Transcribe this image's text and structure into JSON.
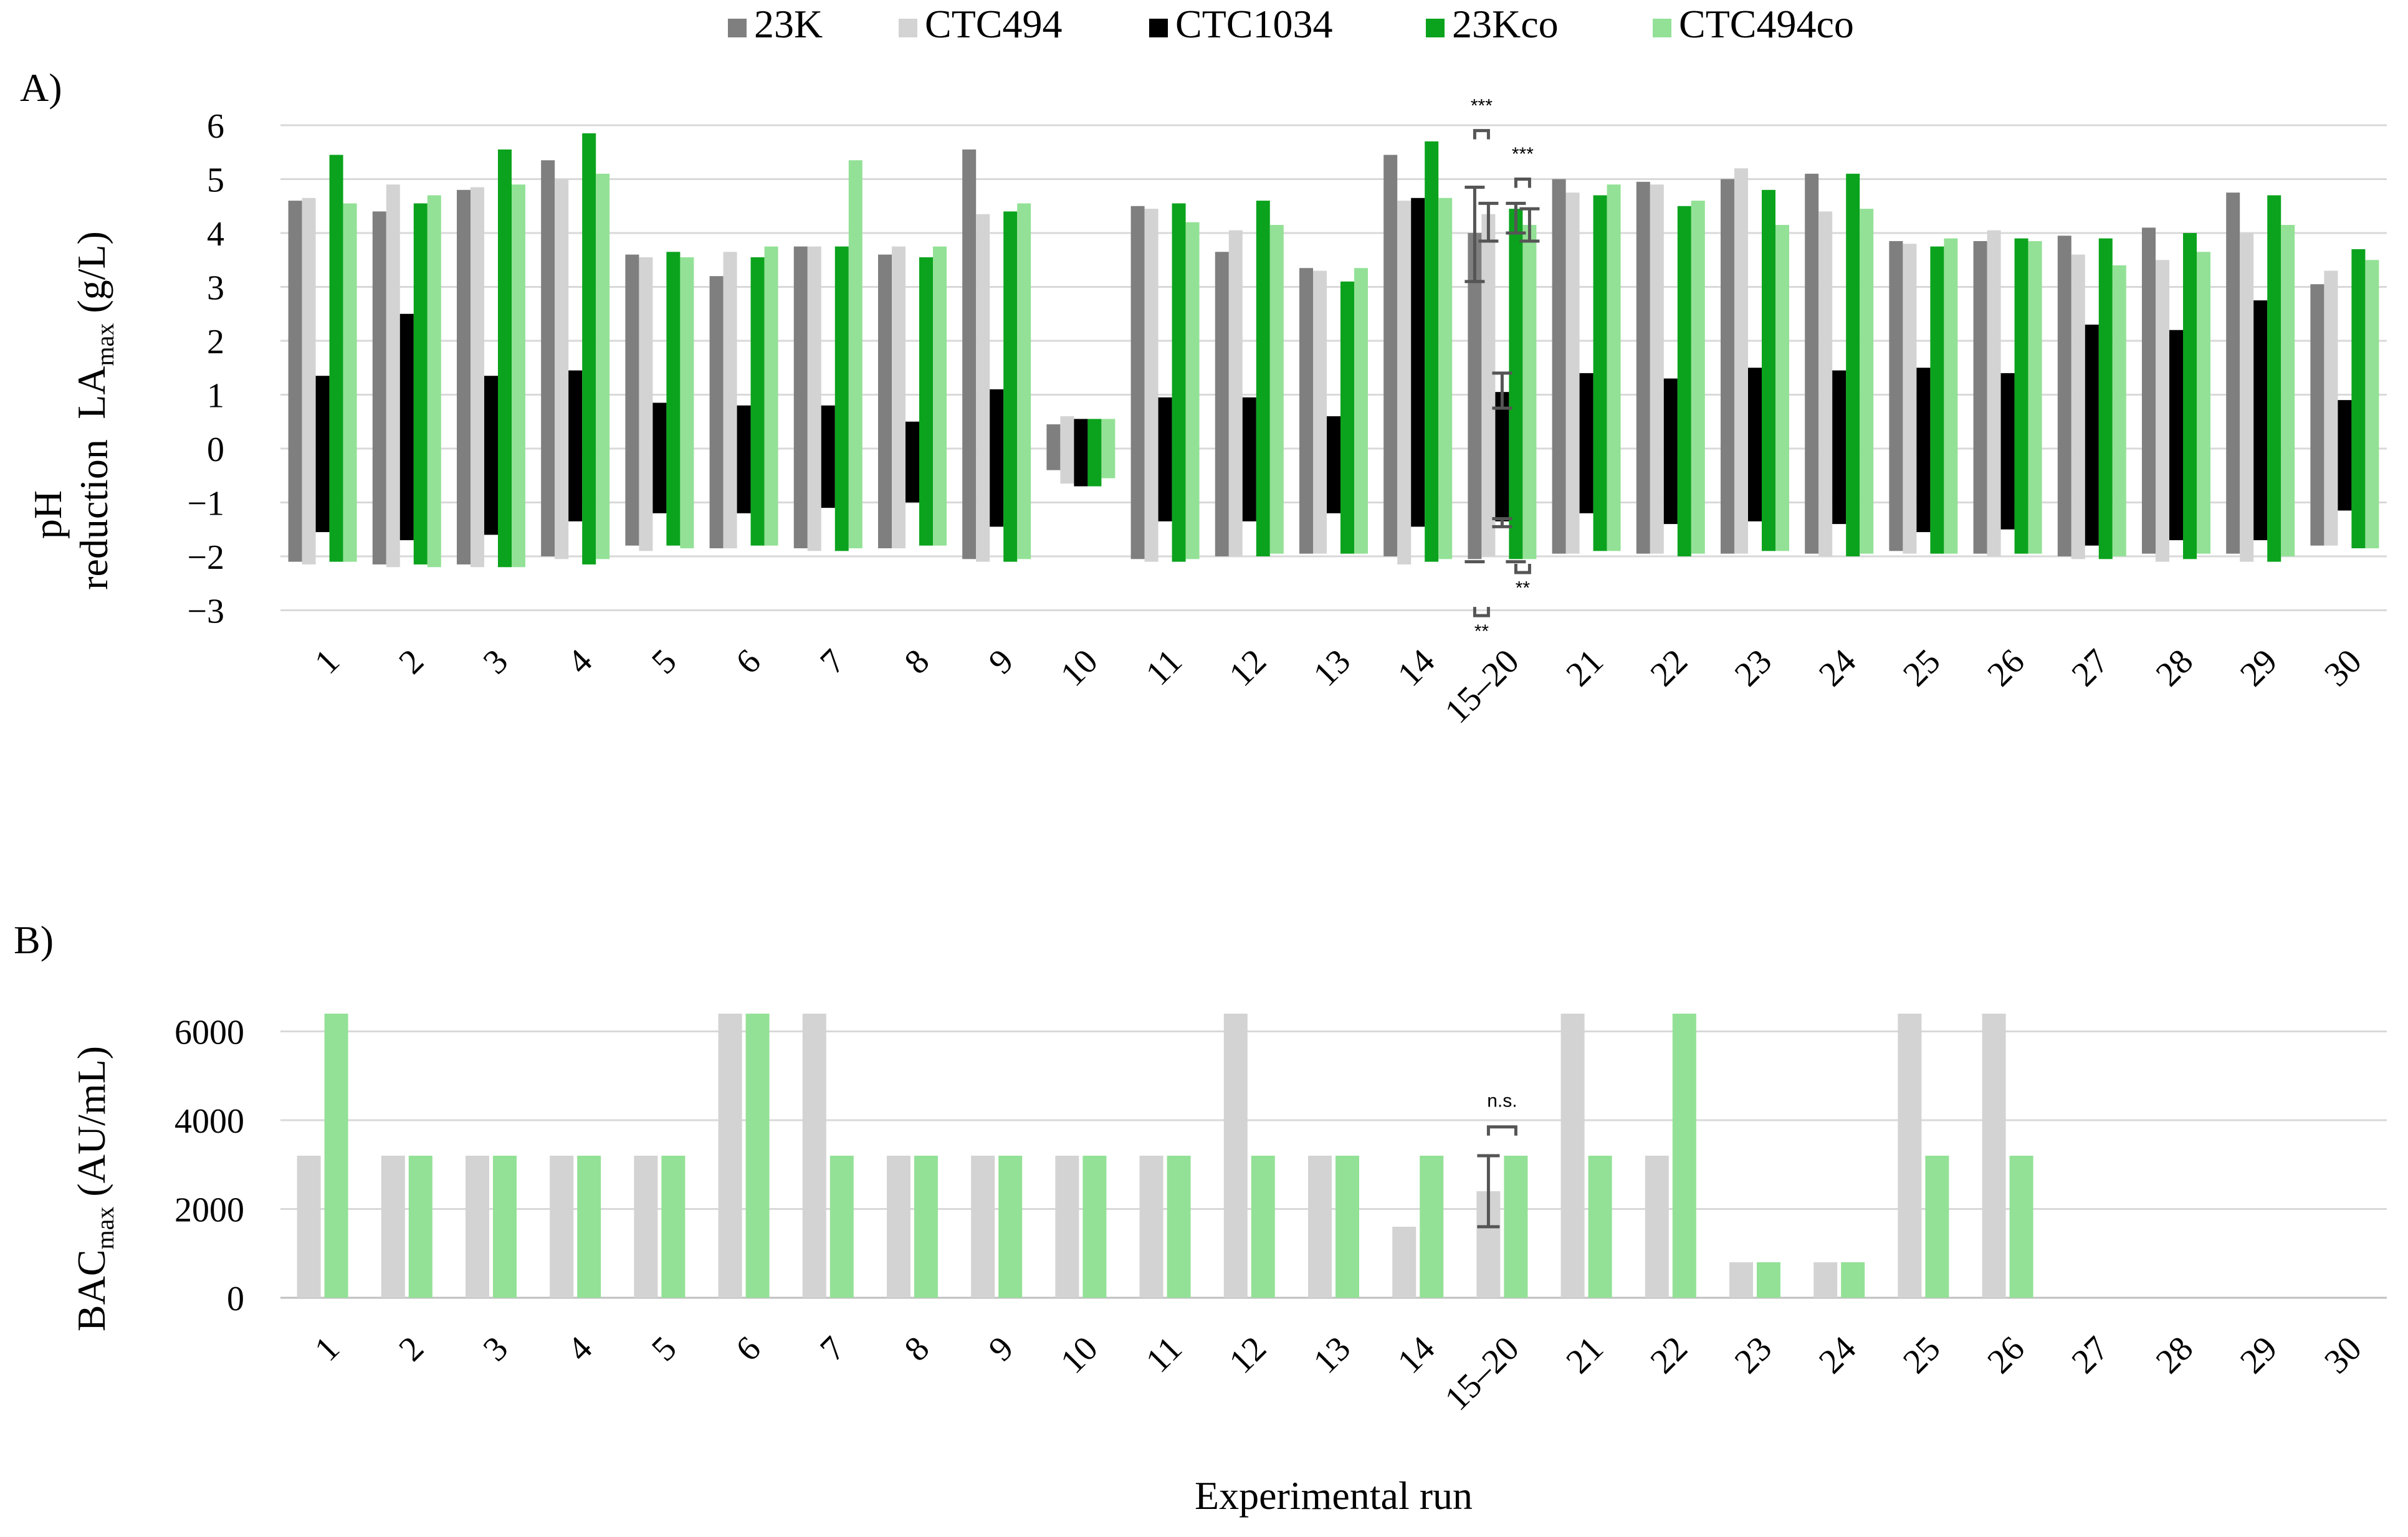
{
  "legend": [
    {
      "name": "23K",
      "color": "#7f7f7f"
    },
    {
      "name": "CTC494",
      "color": "#d3d3d3"
    },
    {
      "name": "CTC1034",
      "color": "#000000"
    },
    {
      "name": "23Kco",
      "color": "#0ba31d"
    },
    {
      "name": "CTC494co",
      "color": "#93e196"
    }
  ],
  "chart_data": [
    {
      "type": "bar",
      "panel_label": "A)",
      "ylabel_top_main": "LA",
      "ylabel_top_sub": "max",
      "ylabel_top_unit": " (g/L)",
      "ylabel_bottom_line1": "pH",
      "ylabel_bottom_line2": "reduction",
      "ylim": [
        -3,
        6
      ],
      "yticks": [
        "−3",
        "−2",
        "−1",
        "0",
        "1",
        "2",
        "3",
        "4",
        "5",
        "6"
      ],
      "categories": [
        "1",
        "2",
        "3",
        "4",
        "5",
        "6",
        "7",
        "8",
        "9",
        "10",
        "11",
        "12",
        "13",
        "14",
        "15–20",
        "21",
        "22",
        "23",
        "24",
        "25",
        "26",
        "27",
        "28",
        "29",
        "30"
      ],
      "series_la": [
        {
          "name": "23K",
          "values": [
            4.6,
            4.4,
            4.8,
            5.35,
            3.6,
            3.2,
            3.75,
            3.6,
            5.55,
            0.45,
            4.5,
            3.65,
            3.35,
            5.45,
            4.0,
            5.0,
            4.95,
            5.0,
            5.1,
            3.85,
            3.85,
            3.95,
            4.1,
            4.75,
            3.05
          ]
        },
        {
          "name": "CTC494",
          "values": [
            4.65,
            4.9,
            4.85,
            5.0,
            3.55,
            3.65,
            3.75,
            3.75,
            4.35,
            0.6,
            4.45,
            4.05,
            3.3,
            4.6,
            4.35,
            4.75,
            4.9,
            5.2,
            4.4,
            3.8,
            4.05,
            3.6,
            3.5,
            4.0,
            3.3
          ]
        },
        {
          "name": "CTC1034",
          "values": [
            1.35,
            2.5,
            1.35,
            1.45,
            0.85,
            0.8,
            0.8,
            0.5,
            1.1,
            0.55,
            0.95,
            0.95,
            0.6,
            4.65,
            1.05,
            1.4,
            1.3,
            1.5,
            1.45,
            1.5,
            1.4,
            2.3,
            2.2,
            2.75,
            0.9
          ]
        },
        {
          "name": "23Kco",
          "values": [
            5.45,
            4.55,
            5.55,
            5.85,
            3.65,
            3.55,
            3.75,
            3.55,
            4.4,
            0.55,
            4.55,
            4.6,
            3.1,
            5.7,
            4.45,
            4.7,
            4.5,
            4.8,
            5.1,
            3.75,
            3.9,
            3.9,
            4.0,
            4.7,
            3.7
          ]
        },
        {
          "name": "CTC494co",
          "values": [
            4.55,
            4.7,
            4.9,
            5.1,
            3.55,
            3.75,
            5.35,
            3.75,
            4.55,
            0.55,
            4.2,
            4.15,
            3.35,
            4.65,
            4.15,
            4.9,
            4.6,
            4.15,
            4.45,
            3.9,
            3.85,
            3.4,
            3.65,
            4.15,
            3.5
          ]
        }
      ],
      "series_ph": [
        {
          "name": "23K",
          "values": [
            -2.1,
            -2.15,
            -2.15,
            -2.0,
            -1.8,
            -1.85,
            -1.85,
            -1.85,
            -2.05,
            -0.4,
            -2.05,
            -2.0,
            -1.95,
            -2.0,
            -2.05,
            -1.95,
            -1.95,
            -1.95,
            -1.95,
            -1.9,
            -1.95,
            -2.0,
            -1.95,
            -1.95,
            -1.8
          ]
        },
        {
          "name": "CTC494",
          "values": [
            -2.15,
            -2.2,
            -2.2,
            -2.05,
            -1.9,
            -1.85,
            -1.9,
            -1.85,
            -2.1,
            -0.65,
            -2.1,
            -2.0,
            -1.95,
            -2.15,
            -2.0,
            -1.95,
            -1.95,
            -1.95,
            -2.0,
            -1.95,
            -2.0,
            -2.05,
            -2.1,
            -2.1,
            -1.8
          ]
        },
        {
          "name": "CTC1034",
          "values": [
            -1.55,
            -1.7,
            -1.6,
            -1.35,
            -1.2,
            -1.2,
            -1.1,
            -1.0,
            -1.45,
            -0.7,
            -1.35,
            -1.35,
            -1.2,
            -1.45,
            -1.35,
            -1.2,
            -1.4,
            -1.35,
            -1.4,
            -1.55,
            -1.5,
            -1.8,
            -1.7,
            -1.7,
            -1.15
          ]
        },
        {
          "name": "23Kco",
          "values": [
            -2.1,
            -2.15,
            -2.2,
            -2.15,
            -1.8,
            -1.8,
            -1.9,
            -1.8,
            -2.1,
            -0.7,
            -2.1,
            -2.0,
            -1.95,
            -2.1,
            -2.05,
            -1.9,
            -2.0,
            -1.9,
            -2.0,
            -1.95,
            -1.95,
            -2.05,
            -2.05,
            -2.1,
            -1.85
          ]
        },
        {
          "name": "CTC494co",
          "values": [
            -2.1,
            -2.2,
            -2.2,
            -2.05,
            -1.85,
            -1.8,
            -1.85,
            -1.8,
            -2.05,
            -0.55,
            -2.05,
            -1.95,
            -1.95,
            -2.05,
            -2.05,
            -1.9,
            -1.95,
            -1.9,
            -1.95,
            -1.95,
            -1.95,
            -2.0,
            -1.95,
            -2.0,
            -1.85
          ]
        }
      ],
      "error_bars_15_20": {
        "23K": {
          "la": [
            3.1,
            4.85
          ]
        },
        "CTC494": {
          "la": [
            3.85,
            4.55
          ]
        },
        "CTC1034": {
          "la": [
            0.75,
            1.4
          ],
          "ph": [
            -1.3,
            -1.45
          ]
        },
        "23Kco": {
          "la": [
            4.0,
            4.55
          ]
        },
        "CTC494co": {
          "la": [
            3.85,
            4.45
          ]
        }
      },
      "significance": [
        "***",
        "***",
        "**",
        "**"
      ]
    },
    {
      "type": "bar",
      "panel_label": "B)",
      "ylabel_main": "BAC",
      "ylabel_sub": "max",
      "ylabel_unit": " (AU/mL)",
      "xlabel": "Experimental run",
      "ylim": [
        0,
        6400
      ],
      "yticks": [
        "0",
        "2000",
        "4000",
        "6000"
      ],
      "categories": [
        "1",
        "2",
        "3",
        "4",
        "5",
        "6",
        "7",
        "8",
        "9",
        "10",
        "11",
        "12",
        "13",
        "14",
        "15–20",
        "21",
        "22",
        "23",
        "24",
        "25",
        "26",
        "27",
        "28",
        "29",
        "30"
      ],
      "series": [
        {
          "name": "CTC494",
          "values": [
            3200,
            3200,
            3200,
            3200,
            3200,
            6400,
            6400,
            3200,
            3200,
            3200,
            3200,
            6400,
            3200,
            1600,
            2400,
            6400,
            3200,
            800,
            800,
            6400,
            6400,
            0,
            0,
            0,
            0
          ]
        },
        {
          "name": "CTC494co",
          "values": [
            6400,
            3200,
            3200,
            3200,
            3200,
            6400,
            3200,
            3200,
            3200,
            3200,
            3200,
            3200,
            3200,
            3200,
            3200,
            3200,
            6400,
            800,
            800,
            3200,
            3200,
            0,
            0,
            0,
            0
          ]
        }
      ],
      "error_bars_15_20": {
        "CTC494": [
          1600,
          3200
        ]
      },
      "significance": [
        "n.s."
      ]
    }
  ]
}
